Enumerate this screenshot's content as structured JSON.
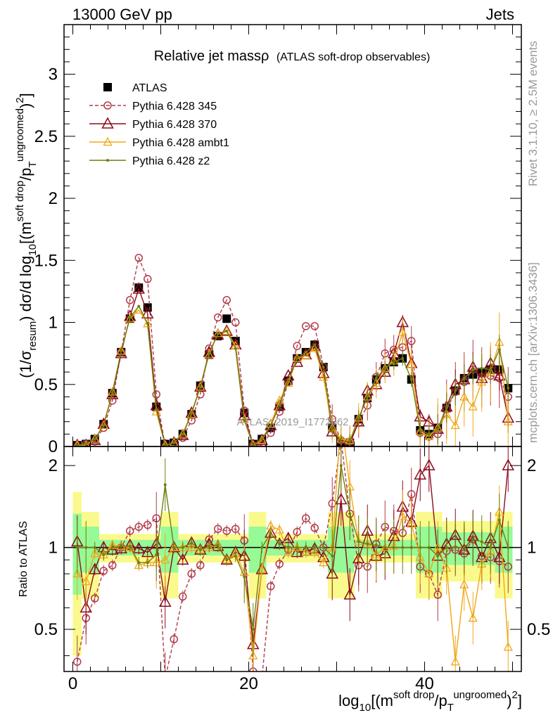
{
  "header": {
    "left": "13000 GeV pp",
    "right": "Jets"
  },
  "side_texts": {
    "rivet": "Rivet 3.1.10, ≥ 2.5M events",
    "mcplots": "mcplots.cern.ch [arXiv:1306.3436]"
  },
  "watermark": "ATLAS_2019_I1772062",
  "chart_data": {
    "type": "scatter",
    "title": "Relative jet massρ (ATLAS soft-drop observables)",
    "title_main": "Relative jet massρ",
    "title_sub": "(ATLAS soft-drop observables)",
    "xlabel": "log10[(m^soft drop/pT^ungroomed)^2]",
    "ylabel": "(1/σresum) dσ/d log10[(m^soft drop/pT^ungroomed)^2]",
    "ratio_ylabel": "Ratio to ATLAS",
    "xlim": [
      -1,
      51
    ],
    "ylim": [
      0,
      3.4
    ],
    "ratio_ylim": [
      0.35,
      2.35
    ],
    "ratio_log": true,
    "legend_position": "top-left",
    "x_ticks": [
      0,
      20,
      40
    ],
    "y_ticks": [
      0,
      0.5,
      1,
      1.5,
      2,
      2.5,
      3
    ],
    "y_tick_labels": [
      "0",
      "0.5",
      "1",
      "1.5",
      "2",
      "2.5",
      "3"
    ],
    "ratio_ticks": [
      0.5,
      1,
      2
    ],
    "ratio_tick_labels": [
      "0.5",
      "1",
      "2"
    ],
    "x": [
      0.5,
      1.5,
      2.5,
      3.5,
      4.5,
      5.5,
      6.5,
      7.5,
      8.5,
      9.5,
      10.5,
      11.5,
      12.5,
      13.5,
      14.5,
      15.5,
      16.5,
      17.5,
      18.5,
      19.5,
      20.5,
      21.5,
      22.5,
      23.5,
      24.5,
      25.5,
      26.5,
      27.5,
      28.5,
      29.5,
      30.5,
      31.5,
      32.5,
      33.5,
      34.5,
      35.5,
      36.5,
      37.5,
      38.5,
      39.5,
      40.5,
      41.5,
      42.5,
      43.5,
      44.5,
      45.5,
      46.5,
      47.5,
      48.5,
      49.5
    ],
    "series": [
      {
        "name": "ATLAS",
        "color": "#000000",
        "values": [
          0.01,
          0.02,
          0.06,
          0.18,
          0.43,
          0.76,
          1.03,
          1.28,
          1.12,
          0.32,
          0.02,
          0.03,
          0.1,
          0.26,
          0.49,
          0.74,
          0.89,
          1.03,
          0.85,
          0.27,
          0.02,
          0.06,
          0.15,
          0.32,
          0.53,
          0.71,
          0.76,
          0.82,
          0.64,
          0.15,
          0.02,
          0.03,
          0.22,
          0.39,
          0.54,
          0.63,
          0.68,
          0.71,
          0.54,
          0.13,
          0.1,
          0.15,
          0.31,
          0.45,
          0.55,
          0.58,
          0.6,
          0.62,
          0.62,
          0.47
        ]
      },
      {
        "name": "Pythia 6.428 345",
        "color": "#b03a48",
        "values": [
          0.0,
          0.02,
          0.04,
          0.15,
          0.37,
          0.76,
          1.18,
          1.52,
          1.35,
          0.42,
          0.0,
          0.01,
          0.07,
          0.21,
          0.42,
          0.79,
          1.04,
          1.18,
          1.0,
          0.29,
          0.01,
          0.01,
          0.11,
          0.28,
          0.52,
          0.81,
          0.97,
          0.97,
          0.64,
          0.22,
          0.05,
          0.04,
          0.19,
          0.33,
          0.56,
          0.75,
          0.78,
          0.8,
          0.85,
          0.11,
          0.08,
          0.1,
          0.3,
          0.44,
          0.52,
          0.62,
          0.56,
          0.57,
          0.55,
          0.4
        ]
      },
      {
        "name": "Pythia 6.428 370",
        "color": "#8b0b1c",
        "values": [
          0.01,
          0.01,
          0.05,
          0.18,
          0.42,
          0.75,
          1.05,
          1.27,
          1.07,
          0.33,
          0.01,
          0.03,
          0.09,
          0.27,
          0.48,
          0.76,
          0.9,
          0.93,
          0.82,
          0.25,
          0.01,
          0.05,
          0.17,
          0.33,
          0.57,
          0.68,
          0.74,
          0.81,
          0.59,
          0.12,
          0.03,
          0.02,
          0.2,
          0.45,
          0.5,
          0.6,
          0.75,
          1.0,
          0.67,
          0.24,
          0.2,
          0.14,
          0.32,
          0.5,
          0.54,
          0.64,
          0.55,
          0.67,
          0.57,
          0.23
        ]
      },
      {
        "name": "Pythia 6.428 ambt1",
        "color": "#f0a818",
        "values": [
          0.01,
          0.01,
          0.06,
          0.17,
          0.44,
          0.77,
          1.03,
          1.1,
          0.99,
          0.28,
          0.01,
          0.03,
          0.1,
          0.26,
          0.48,
          0.74,
          0.91,
          0.93,
          0.81,
          0.22,
          0.01,
          0.05,
          0.18,
          0.37,
          0.51,
          0.71,
          0.73,
          0.79,
          0.56,
          0.15,
          0.06,
          0.05,
          0.23,
          0.4,
          0.51,
          0.63,
          0.69,
          0.92,
          0.66,
          0.12,
          0.08,
          0.15,
          0.26,
          0.17,
          0.4,
          0.32,
          0.52,
          0.6,
          0.84,
          0.2
        ]
      },
      {
        "name": "Pythia 6.428 z2",
        "color": "#6f7f10",
        "values": [
          0.01,
          0.02,
          0.06,
          0.17,
          0.43,
          0.77,
          1.04,
          1.13,
          0.99,
          0.3,
          0.01,
          0.03,
          0.1,
          0.27,
          0.48,
          0.75,
          0.91,
          0.93,
          0.79,
          0.21,
          0.01,
          0.06,
          0.17,
          0.33,
          0.53,
          0.71,
          0.76,
          0.82,
          0.64,
          0.14,
          0.04,
          0.04,
          0.23,
          0.4,
          0.55,
          0.63,
          0.68,
          0.71,
          0.54,
          0.13,
          0.1,
          0.14,
          0.31,
          0.45,
          0.55,
          0.62,
          0.63,
          0.62,
          0.78,
          0.47
        ]
      }
    ],
    "ratios": [
      {
        "name": "Pythia 6.428 345",
        "values": [
          0.38,
          0.55,
          0.65,
          0.82,
          0.86,
          1.0,
          1.15,
          1.19,
          1.21,
          1.28,
          0.33,
          0.46,
          0.66,
          0.8,
          0.86,
          1.07,
          1.17,
          1.15,
          1.17,
          1.06,
          0.35,
          0.33,
          0.72,
          0.87,
          0.98,
          1.14,
          1.28,
          1.18,
          1.0,
          1.45,
          2.5,
          1.33,
          0.86,
          0.85,
          1.03,
          1.19,
          1.15,
          1.13,
          1.57,
          0.85,
          0.8,
          0.67,
          0.97,
          0.98,
          0.95,
          1.07,
          0.93,
          0.92,
          0.89,
          0.85
        ]
      },
      {
        "name": "Pythia 6.428 370",
        "values": [
          1.05,
          0.6,
          0.83,
          1.0,
          0.98,
          0.99,
          1.02,
          0.99,
          0.96,
          1.03,
          0.63,
          1.0,
          0.9,
          1.04,
          0.98,
          1.03,
          1.01,
          0.9,
          0.96,
          0.93,
          0.44,
          0.83,
          1.13,
          1.03,
          1.08,
          0.96,
          0.97,
          0.99,
          0.92,
          0.8,
          1.5,
          0.67,
          0.91,
          1.15,
          0.93,
          0.95,
          1.1,
          1.41,
          1.24,
          1.85,
          2.0,
          0.93,
          1.03,
          1.11,
          0.98,
          1.1,
          0.92,
          1.08,
          0.92,
          2.0
        ]
      },
      {
        "name": "Pythia 6.428 ambt1",
        "values": [
          0.8,
          0.75,
          0.95,
          0.94,
          1.02,
          1.01,
          1.0,
          0.86,
          0.88,
          0.88,
          0.9,
          1.0,
          1.0,
          1.0,
          0.98,
          1.0,
          1.02,
          0.9,
          0.95,
          0.81,
          0.4,
          0.83,
          1.2,
          1.16,
          0.96,
          1.0,
          0.96,
          0.96,
          0.88,
          1.0,
          3.0,
          1.67,
          1.05,
          1.03,
          0.94,
          1.0,
          1.01,
          1.3,
          1.22,
          0.92,
          0.8,
          1.0,
          0.84,
          0.38,
          0.73,
          0.55,
          0.87,
          0.97,
          1.35,
          0.43
        ]
      },
      {
        "name": "Pythia 6.428 z2",
        "values": [
          1.0,
          1.0,
          1.0,
          0.94,
          1.0,
          1.01,
          1.01,
          0.88,
          0.88,
          0.94,
          1.7,
          1.0,
          1.0,
          1.04,
          0.98,
          1.01,
          1.02,
          0.9,
          0.93,
          0.78,
          0.5,
          1.0,
          1.13,
          1.03,
          1.0,
          1.0,
          1.0,
          1.0,
          1.0,
          0.93,
          2.0,
          1.33,
          1.05,
          1.03,
          1.02,
          1.0,
          1.0,
          1.0,
          1.0,
          1.0,
          1.0,
          0.93,
          1.0,
          1.0,
          1.0,
          1.07,
          1.05,
          1.0,
          1.26,
          1.0
        ]
      }
    ]
  }
}
